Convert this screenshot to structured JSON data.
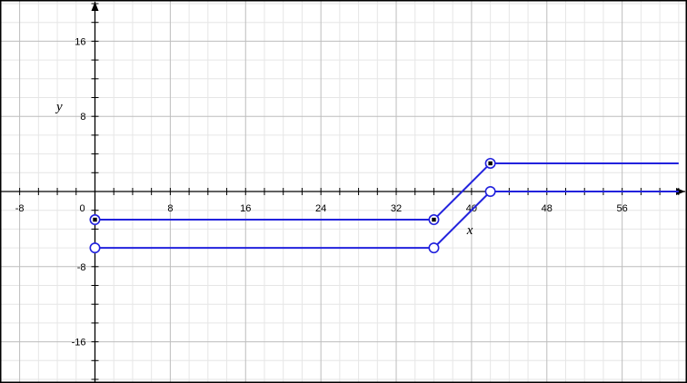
{
  "chart_data": {
    "type": "line",
    "title": "",
    "xlabel": "x",
    "ylabel": "y",
    "xlim": [
      -10,
      62
    ],
    "ylim": [
      -20,
      20
    ],
    "grid": true,
    "minor_grid_step": 2,
    "major_grid_step": 8,
    "x_tick_labels": [
      "-8",
      "0",
      "8",
      "16",
      "24",
      "32",
      "40",
      "48",
      "56"
    ],
    "y_tick_labels": [
      "16",
      "8",
      "-8",
      "-16"
    ],
    "x_tick_values": [
      -8,
      0,
      8,
      16,
      24,
      32,
      40,
      48,
      56
    ],
    "y_tick_values": [
      16,
      8,
      -8,
      -16
    ],
    "series_color": "#2222dd",
    "series": [
      {
        "x": [
          0,
          36,
          42,
          62
        ],
        "y": [
          -3,
          -3,
          3,
          3
        ],
        "markers": [
          {
            "x": 0,
            "y": -3,
            "style": "closed"
          },
          {
            "x": 36,
            "y": -3,
            "style": "closed"
          },
          {
            "x": 42,
            "y": 3,
            "style": "closed"
          }
        ]
      },
      {
        "x": [
          0,
          36,
          42,
          62
        ],
        "y": [
          -6,
          -6,
          0,
          0
        ],
        "markers": [
          {
            "x": 0,
            "y": -6,
            "style": "open"
          },
          {
            "x": 36,
            "y": -6,
            "style": "open"
          },
          {
            "x": 42,
            "y": 0,
            "style": "open"
          }
        ]
      }
    ]
  }
}
